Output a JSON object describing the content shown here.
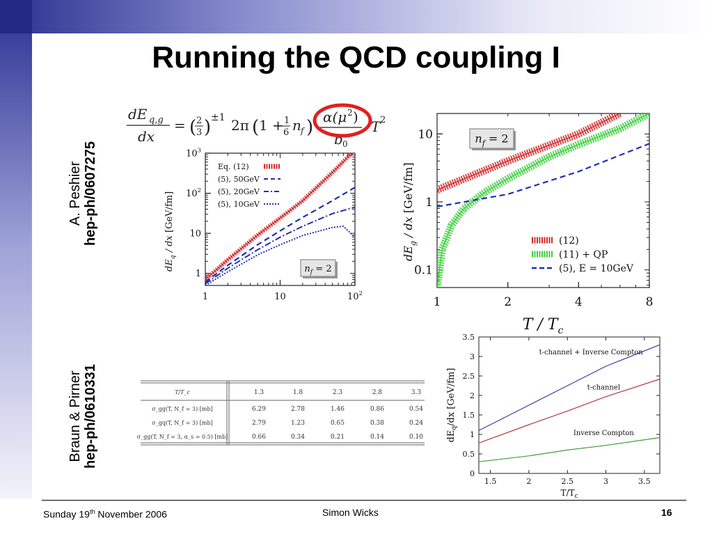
{
  "slide": {
    "title": "Running the QCD coupling I",
    "ref1": {
      "author": "A.  Peshier",
      "id": "hep-ph/0607275"
    },
    "ref2": {
      "author": "Braun & Pirner",
      "id": "hep-ph/0610331"
    }
  },
  "formula": {
    "lhs_num": "dE",
    "lhs_sub": "q,g",
    "lhs_den": "dx",
    "eq": "=",
    "frac_num": "2",
    "frac_den": "3",
    "exp": "±1",
    "two_pi": "2π",
    "one_plus": "1 +",
    "sixth_num": "1",
    "sixth_den": "6",
    "nf": "n",
    "nf_sub": "f",
    "alpha": "α(μ",
    "alpha_exp": "2",
    "alpha_close": ")",
    "b0": "b",
    "b0_sub": "0",
    "T": "T",
    "T_exp": "2"
  },
  "chart_data": [
    {
      "type": "line",
      "xlabel": "",
      "ylabel": "dE_q / dx  [GeV/fm]",
      "xscale": "log",
      "yscale": "log",
      "xlim": [
        1,
        100
      ],
      "ylim": [
        0.5,
        1000
      ],
      "xticks": [
        "1",
        "10",
        "10^2"
      ],
      "yticks": [
        "1",
        "10",
        "10^2",
        "10^3"
      ],
      "annotation": "n_f = 2",
      "legend_position": "top-left",
      "series": [
        {
          "name": "Eq. (12)",
          "color": "#d42a2a",
          "style": "band",
          "x": [
            1,
            2,
            5,
            10,
            20,
            50,
            100
          ],
          "y": [
            0.7,
            2.2,
            9,
            24,
            65,
            330,
            1200
          ]
        },
        {
          "name": "(5), 50GeV",
          "color": "#1f2fb0",
          "style": "dashed",
          "x": [
            1,
            2,
            5,
            10,
            20,
            50,
            100
          ],
          "y": [
            0.6,
            1.6,
            5.2,
            11.5,
            25,
            65,
            140
          ]
        },
        {
          "name": "(5), 20GeV",
          "color": "#1f2fb0",
          "style": "dashdot",
          "x": [
            1,
            2,
            5,
            10,
            20,
            50,
            100
          ],
          "y": [
            0.55,
            1.35,
            3.9,
            8,
            15,
            31,
            45
          ]
        },
        {
          "name": "(5), 10GeV",
          "color": "#1f2fb0",
          "style": "dotted",
          "x": [
            1,
            2,
            5,
            10,
            20,
            50,
            70,
            100
          ],
          "y": [
            0.5,
            1.1,
            2.9,
            5.2,
            8.8,
            14,
            15,
            8
          ]
        }
      ]
    },
    {
      "type": "line",
      "xlabel": "T / T_c",
      "ylabel": "dE_g / dx  [GeV/fm]",
      "xscale": "log",
      "yscale": "log",
      "xlim": [
        1,
        8
      ],
      "ylim": [
        0.055,
        20
      ],
      "xticks": [
        "1",
        "2",
        "4",
        "8"
      ],
      "yticks": [
        "0.1",
        "1",
        "10"
      ],
      "annotation": "n_f = 2",
      "legend_position": "bottom-right",
      "series": [
        {
          "name": "(12)",
          "color": "#d42a2a",
          "style": "band",
          "x": [
            1,
            2,
            4,
            6
          ],
          "y": [
            1.5,
            4,
            10,
            20
          ]
        },
        {
          "name": "(11) + QP",
          "color": "#3ecf3e",
          "style": "band",
          "x": [
            1,
            1.05,
            1.15,
            1.3,
            1.6,
            2,
            3,
            4,
            6,
            8
          ],
          "y": [
            0.055,
            0.2,
            0.45,
            0.8,
            1.4,
            2.2,
            4.6,
            7,
            12,
            20
          ]
        },
        {
          "name": "(5), E = 10GeV",
          "color": "#1f2fb0",
          "style": "dashed",
          "x": [
            1,
            2,
            4,
            8
          ],
          "y": [
            0.85,
            1.3,
            2.8,
            7.2
          ]
        }
      ]
    },
    {
      "type": "line",
      "xlabel": "T/T_c",
      "ylabel": "dE_q/dx [GeV/fm]",
      "xlim": [
        1.35,
        3.7
      ],
      "ylim": [
        0,
        3.5
      ],
      "xticks": [
        "1.5",
        "2",
        "2.5",
        "3",
        "3.5"
      ],
      "yticks": [
        "0",
        "0.5",
        "1",
        "1.5",
        "2",
        "2.5",
        "3",
        "3.5"
      ],
      "series": [
        {
          "name": "t-channel + Inverse Compton",
          "color": "#3a3aa8",
          "x": [
            1.35,
            2,
            2.5,
            3,
            3.7
          ],
          "y": [
            1.1,
            1.75,
            2.25,
            2.75,
            3.3
          ]
        },
        {
          "name": "t-channel",
          "color": "#b03a3a",
          "x": [
            1.35,
            2,
            2.5,
            3,
            3.7
          ],
          "y": [
            0.78,
            1.25,
            1.6,
            1.97,
            2.42
          ]
        },
        {
          "name": "Inverse Compton",
          "color": "#3aa03a",
          "x": [
            1.35,
            2,
            2.5,
            3,
            3.7
          ],
          "y": [
            0.3,
            0.45,
            0.6,
            0.72,
            0.92
          ]
        }
      ]
    },
    {
      "type": "table",
      "header": [
        "T/T_c",
        "1.3",
        "1.8",
        "2.3",
        "2.8",
        "3.3"
      ],
      "rows": [
        {
          "label": "σ_gg(T, N_f = 3) [mb]",
          "values": [
            "6.29",
            "2.78",
            "1.46",
            "0.86",
            "0.54"
          ]
        },
        {
          "label": "σ_gq(T, N_f = 3) [mb]",
          "values": [
            "2.79",
            "1.23",
            "0.65",
            "0.38",
            "0.24"
          ]
        },
        {
          "label": "σ_gg(T, N_f = 3, α_s = 0.5) [mb]",
          "values": [
            "0.66",
            "0.34",
            "0.21",
            "0.14",
            "0.10"
          ]
        }
      ]
    }
  ],
  "footer": {
    "date_pre": "Sunday 19",
    "date_sup": "th",
    "date_post": " November 2006",
    "author": "Simon Wicks",
    "page": "16"
  }
}
